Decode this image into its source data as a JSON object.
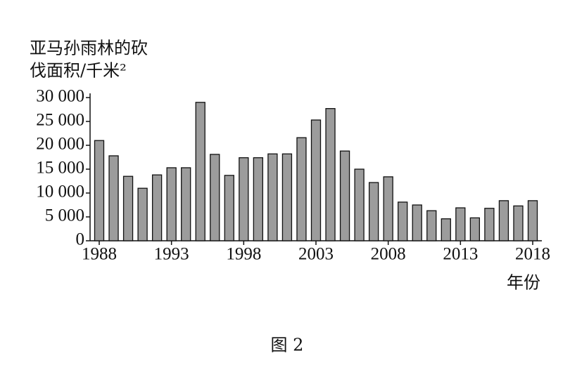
{
  "chart_data": {
    "type": "bar",
    "y_label": [
      "亚马孙雨林的砍",
      "伐面积/千米²"
    ],
    "x_label": "年份",
    "caption": "图 2",
    "categories": [
      "1988",
      null,
      null,
      null,
      null,
      "1993",
      null,
      null,
      null,
      null,
      "1998",
      null,
      null,
      null,
      null,
      "2003",
      null,
      null,
      null,
      null,
      "2008",
      null,
      null,
      null,
      null,
      "2013",
      null,
      null,
      null,
      null,
      "2018"
    ],
    "values": [
      21000,
      17800,
      13500,
      11000,
      13800,
      15300,
      15300,
      29000,
      18100,
      13700,
      17400,
      17400,
      18200,
      18200,
      21600,
      25300,
      27700,
      18800,
      15000,
      12200,
      13400,
      8100,
      7500,
      6300,
      4600,
      6900,
      4800,
      6800,
      8400,
      7300,
      8400
    ],
    "color": "#9c9c9c",
    "ylim": [
      0,
      30000
    ],
    "yticks": [
      0,
      {
        "value": 5000,
        "label": "5 000"
      },
      {
        "value": 10000,
        "label": "10 000"
      },
      {
        "value": 15000,
        "label": "15 000"
      },
      {
        "value": 20000,
        "label": "20 000"
      },
      {
        "value": 25000,
        "label": "25 000"
      },
      {
        "value": 30000,
        "label": "30 000"
      }
    ]
  }
}
